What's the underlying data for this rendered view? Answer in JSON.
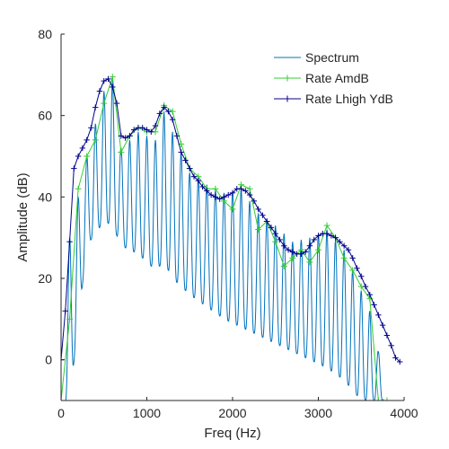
{
  "chart_data": {
    "type": "line",
    "xlabel": "Freq (Hz)",
    "ylabel": "Amplitude (dB)",
    "xlim": [
      0,
      4000
    ],
    "ylim": [
      -10,
      80
    ],
    "xticks": [
      0,
      1000,
      2000,
      3000,
      4000
    ],
    "yticks": [
      0,
      20,
      40,
      60,
      80
    ],
    "xtick_labels": [
      "0",
      "1000",
      "2000",
      "3000",
      "4000"
    ],
    "ytick_labels": [
      "0",
      "20",
      "40",
      "60",
      "80"
    ],
    "grid": false,
    "legend_position": "top-right",
    "legend": [
      "Spectrum",
      "Rate AmdB",
      "Rate Lhigh YdB"
    ],
    "series": [
      {
        "name": "Spectrum",
        "color": "#0072bd",
        "marker": "none",
        "description": "harmonic line spectrum, peaks follow the upper envelope with deep valleys between harmonics",
        "fundamental_hz": 100,
        "upper_envelope": {
          "x": [
            100,
            300,
            500,
            600,
            700,
            900,
            1100,
            1200,
            1300,
            1500,
            1700,
            1900,
            2100,
            2300,
            2500,
            2700,
            2900,
            3100,
            3300,
            3500,
            3600,
            3700
          ],
          "y": [
            30,
            50,
            66,
            69,
            52,
            56,
            54,
            61,
            56,
            46,
            43,
            41,
            42,
            36,
            33,
            29,
            30,
            32,
            27,
            17,
            12,
            2
          ]
        },
        "lower_envelope": {
          "x": [
            100,
            300,
            500,
            600,
            700,
            900,
            1100,
            1200,
            1300,
            1500,
            1700,
            1900,
            2100,
            2300,
            2500,
            2700,
            2900,
            3100,
            3300,
            3500,
            3600,
            3700
          ],
          "y": [
            -10,
            28,
            34,
            33,
            28,
            26,
            22,
            24,
            20,
            16,
            13,
            10,
            8,
            6,
            4,
            2,
            0,
            -2,
            -5,
            -10,
            -10,
            -10
          ]
        }
      },
      {
        "name": "Rate AmdB",
        "color": "#32cd32",
        "marker": "+",
        "x": [
          0,
          100,
          200,
          300,
          400,
          500,
          600,
          700,
          800,
          900,
          1000,
          1100,
          1200,
          1300,
          1400,
          1500,
          1600,
          1700,
          1800,
          1900,
          2000,
          2100,
          2200,
          2300,
          2400,
          2500,
          2600,
          2700,
          2800,
          2900,
          3000,
          3100,
          3200,
          3300,
          3400,
          3500,
          3600,
          3700,
          3800
        ],
        "y": [
          -10,
          10,
          42,
          50,
          54,
          63,
          69.5,
          51,
          55,
          57,
          56,
          56,
          62.5,
          61,
          53,
          47,
          45,
          42,
          42,
          39,
          37,
          43,
          42,
          32,
          34,
          29,
          23,
          25,
          27,
          24,
          27,
          33,
          30,
          25,
          22,
          18,
          15,
          -10,
          -10
        ]
      },
      {
        "name": "Rate Lhigh YdB",
        "color": "#00008b",
        "marker": "+",
        "x": [
          0,
          50,
          100,
          150,
          200,
          250,
          300,
          350,
          400,
          450,
          500,
          550,
          600,
          650,
          700,
          750,
          800,
          850,
          900,
          950,
          1000,
          1050,
          1100,
          1150,
          1200,
          1250,
          1300,
          1350,
          1400,
          1450,
          1500,
          1550,
          1600,
          1650,
          1700,
          1750,
          1800,
          1850,
          1900,
          1950,
          2000,
          2050,
          2100,
          2150,
          2200,
          2250,
          2300,
          2350,
          2400,
          2450,
          2500,
          2550,
          2600,
          2650,
          2700,
          2750,
          2800,
          2850,
          2900,
          2950,
          3000,
          3050,
          3100,
          3150,
          3200,
          3250,
          3300,
          3350,
          3400,
          3450,
          3500,
          3550,
          3600,
          3650,
          3700,
          3750,
          3800,
          3850,
          3900,
          3950
        ],
        "y": [
          0,
          12,
          29,
          47,
          50,
          52,
          54,
          57,
          62,
          66,
          68.5,
          69,
          67,
          63,
          55,
          54.5,
          55,
          56.5,
          57,
          57,
          56.5,
          56,
          57.5,
          60.5,
          62,
          61,
          59,
          55,
          51,
          49,
          47,
          45,
          44,
          42.5,
          41.5,
          40.5,
          40,
          39.5,
          40,
          40.5,
          41,
          42,
          42,
          41.5,
          40.5,
          39,
          37,
          35.5,
          34,
          32.5,
          31,
          29.5,
          28,
          27,
          26.5,
          26,
          26,
          26.5,
          28,
          29.5,
          30.5,
          31,
          31,
          30.5,
          30,
          29,
          28,
          27,
          25,
          22.5,
          20.5,
          18,
          16,
          13.5,
          11,
          8.5,
          6,
          3.5,
          0.5,
          -0.5
        ]
      }
    ]
  }
}
